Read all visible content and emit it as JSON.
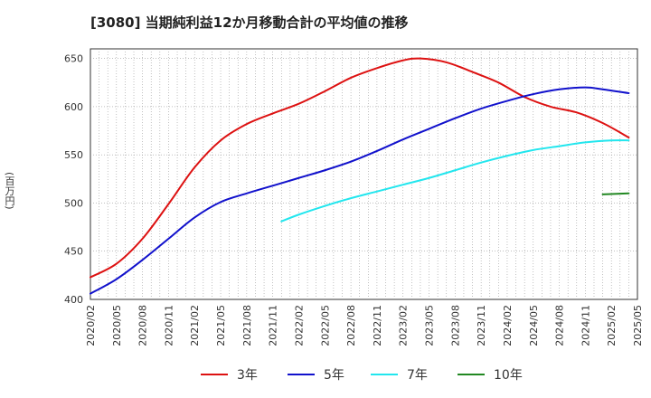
{
  "chart_data": {
    "type": "line",
    "title": "[3080]  当期純利益12か月移動合計の平均値の推移",
    "ylabel": "(百万円)",
    "xlabel": "",
    "ylim": [
      400,
      660
    ],
    "yticks": [
      400,
      450,
      500,
      550,
      600,
      650
    ],
    "x_ticks": [
      "2020/02",
      "2020/05",
      "2020/08",
      "2020/11",
      "2021/02",
      "2021/05",
      "2021/08",
      "2021/11",
      "2022/02",
      "2022/05",
      "2022/08",
      "2022/11",
      "2023/02",
      "2023/05",
      "2023/08",
      "2023/11",
      "2024/02",
      "2024/05",
      "2024/08",
      "2024/11",
      "2025/02",
      "2025/05"
    ],
    "grid": true,
    "legend_position": "bottom",
    "series": [
      {
        "name": "3年",
        "color": "#dd1111",
        "points": [
          [
            "2020/02",
            423
          ],
          [
            "2020/05",
            437
          ],
          [
            "2020/08",
            463
          ],
          [
            "2020/11",
            499
          ],
          [
            "2021/02",
            537
          ],
          [
            "2021/05",
            565
          ],
          [
            "2021/08",
            582
          ],
          [
            "2021/11",
            593
          ],
          [
            "2022/02",
            603
          ],
          [
            "2022/05",
            616
          ],
          [
            "2022/08",
            630
          ],
          [
            "2022/11",
            640
          ],
          [
            "2023/02",
            648
          ],
          [
            "2023/04",
            650
          ],
          [
            "2023/07",
            646
          ],
          [
            "2023/10",
            636
          ],
          [
            "2024/01",
            625
          ],
          [
            "2024/04",
            610
          ],
          [
            "2024/07",
            600
          ],
          [
            "2024/10",
            594
          ],
          [
            "2025/01",
            583
          ],
          [
            "2025/04",
            568
          ]
        ]
      },
      {
        "name": "5年",
        "color": "#1111cc",
        "points": [
          [
            "2020/02",
            406
          ],
          [
            "2020/05",
            421
          ],
          [
            "2020/08",
            441
          ],
          [
            "2020/11",
            463
          ],
          [
            "2021/02",
            485
          ],
          [
            "2021/05",
            501
          ],
          [
            "2021/08",
            510
          ],
          [
            "2021/11",
            518
          ],
          [
            "2022/02",
            526
          ],
          [
            "2022/05",
            534
          ],
          [
            "2022/08",
            543
          ],
          [
            "2022/11",
            554
          ],
          [
            "2023/02",
            566
          ],
          [
            "2023/05",
            577
          ],
          [
            "2023/08",
            588
          ],
          [
            "2023/11",
            598
          ],
          [
            "2024/02",
            606
          ],
          [
            "2024/05",
            613
          ],
          [
            "2024/08",
            618
          ],
          [
            "2024/11",
            620
          ],
          [
            "2025/01",
            618
          ],
          [
            "2025/04",
            614
          ]
        ]
      },
      {
        "name": "7年",
        "color": "#22e6ee",
        "points": [
          [
            "2021/12",
            481
          ],
          [
            "2022/02",
            488
          ],
          [
            "2022/05",
            497
          ],
          [
            "2022/08",
            505
          ],
          [
            "2022/11",
            512
          ],
          [
            "2023/02",
            519
          ],
          [
            "2023/05",
            526
          ],
          [
            "2023/08",
            534
          ],
          [
            "2023/11",
            542
          ],
          [
            "2024/02",
            549
          ],
          [
            "2024/05",
            555
          ],
          [
            "2024/08",
            559
          ],
          [
            "2024/11",
            563
          ],
          [
            "2025/02",
            565
          ],
          [
            "2025/04",
            565
          ]
        ]
      },
      {
        "name": "10年",
        "color": "#228822",
        "points": [
          [
            "2025/01",
            509
          ],
          [
            "2025/04",
            510
          ]
        ]
      }
    ]
  }
}
